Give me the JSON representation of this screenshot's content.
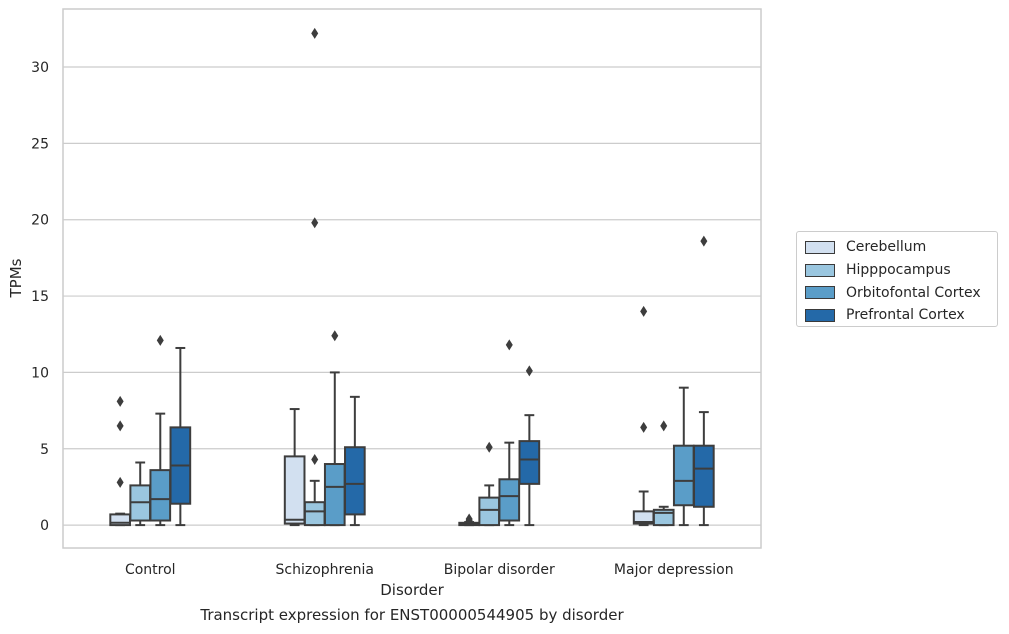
{
  "chart_data": {
    "type": "box",
    "title": "",
    "caption": "Transcript expression for ENST00000544905 by disorder",
    "xlabel": "Disorder",
    "ylabel": "TPMs",
    "ylim": [
      -1.5,
      33.8
    ],
    "yticks": [
      0,
      5,
      10,
      15,
      20,
      25,
      30
    ],
    "grid": true,
    "legend_position": "right",
    "categories": [
      "Control",
      "Schizophrenia",
      "Bipolar disorder",
      "Major depression"
    ],
    "series": [
      {
        "name": "Cerebellum",
        "color": "#d2e0f0",
        "boxes": [
          {
            "whislo": 0.0,
            "q1": 0.0,
            "med": 0.15,
            "q3": 0.7,
            "whishi": 0.75,
            "fliers": [
              2.8,
              6.5,
              8.1
            ]
          },
          {
            "whislo": 0.0,
            "q1": 0.1,
            "med": 0.35,
            "q3": 4.5,
            "whishi": 7.6,
            "fliers": []
          },
          {
            "whislo": 0.0,
            "q1": 0.0,
            "med": 0.05,
            "q3": 0.15,
            "whishi": 0.2,
            "fliers": [
              0.3,
              0.4
            ]
          },
          {
            "whislo": 0.0,
            "q1": 0.1,
            "med": 0.2,
            "q3": 0.9,
            "whishi": 2.2,
            "fliers": [
              6.4,
              14.0
            ]
          }
        ]
      },
      {
        "name": "Hipppocampus",
        "color": "#9ac6df",
        "boxes": [
          {
            "whislo": 0.0,
            "q1": 0.3,
            "med": 1.5,
            "q3": 2.6,
            "whishi": 4.1,
            "fliers": []
          },
          {
            "whislo": 0.0,
            "q1": 0.0,
            "med": 0.9,
            "q3": 1.5,
            "whishi": 2.9,
            "fliers": [
              4.3,
              19.8,
              32.2
            ]
          },
          {
            "whislo": 0.0,
            "q1": 0.0,
            "med": 1.0,
            "q3": 1.8,
            "whishi": 2.6,
            "fliers": [
              5.1
            ]
          },
          {
            "whislo": 0.0,
            "q1": 0.0,
            "med": 0.8,
            "q3": 1.0,
            "whishi": 1.2,
            "fliers": [
              6.5
            ]
          }
        ]
      },
      {
        "name": "Orbitofontal Cortex",
        "color": "#5a9dc8",
        "boxes": [
          {
            "whislo": 0.0,
            "q1": 0.3,
            "med": 1.7,
            "q3": 3.6,
            "whishi": 7.3,
            "fliers": [
              12.1
            ]
          },
          {
            "whislo": 0.0,
            "q1": 0.0,
            "med": 2.5,
            "q3": 4.0,
            "whishi": 10.0,
            "fliers": [
              12.4
            ]
          },
          {
            "whislo": 0.0,
            "q1": 0.3,
            "med": 1.9,
            "q3": 3.0,
            "whishi": 5.4,
            "fliers": [
              11.8
            ]
          },
          {
            "whislo": 0.0,
            "q1": 1.3,
            "med": 2.9,
            "q3": 5.2,
            "whishi": 9.0,
            "fliers": []
          }
        ]
      },
      {
        "name": "Prefrontal Cortex",
        "color": "#2469a8",
        "boxes": [
          {
            "whislo": 0.0,
            "q1": 1.4,
            "med": 3.9,
            "q3": 6.4,
            "whishi": 11.6,
            "fliers": []
          },
          {
            "whislo": 0.0,
            "q1": 0.7,
            "med": 2.7,
            "q3": 5.1,
            "whishi": 8.4,
            "fliers": []
          },
          {
            "whislo": 0.0,
            "q1": 2.7,
            "med": 4.3,
            "q3": 5.5,
            "whishi": 7.2,
            "fliers": [
              10.1
            ]
          },
          {
            "whislo": 0.0,
            "q1": 1.2,
            "med": 3.7,
            "q3": 5.2,
            "whishi": 7.4,
            "fliers": [
              18.6
            ]
          }
        ]
      }
    ]
  }
}
